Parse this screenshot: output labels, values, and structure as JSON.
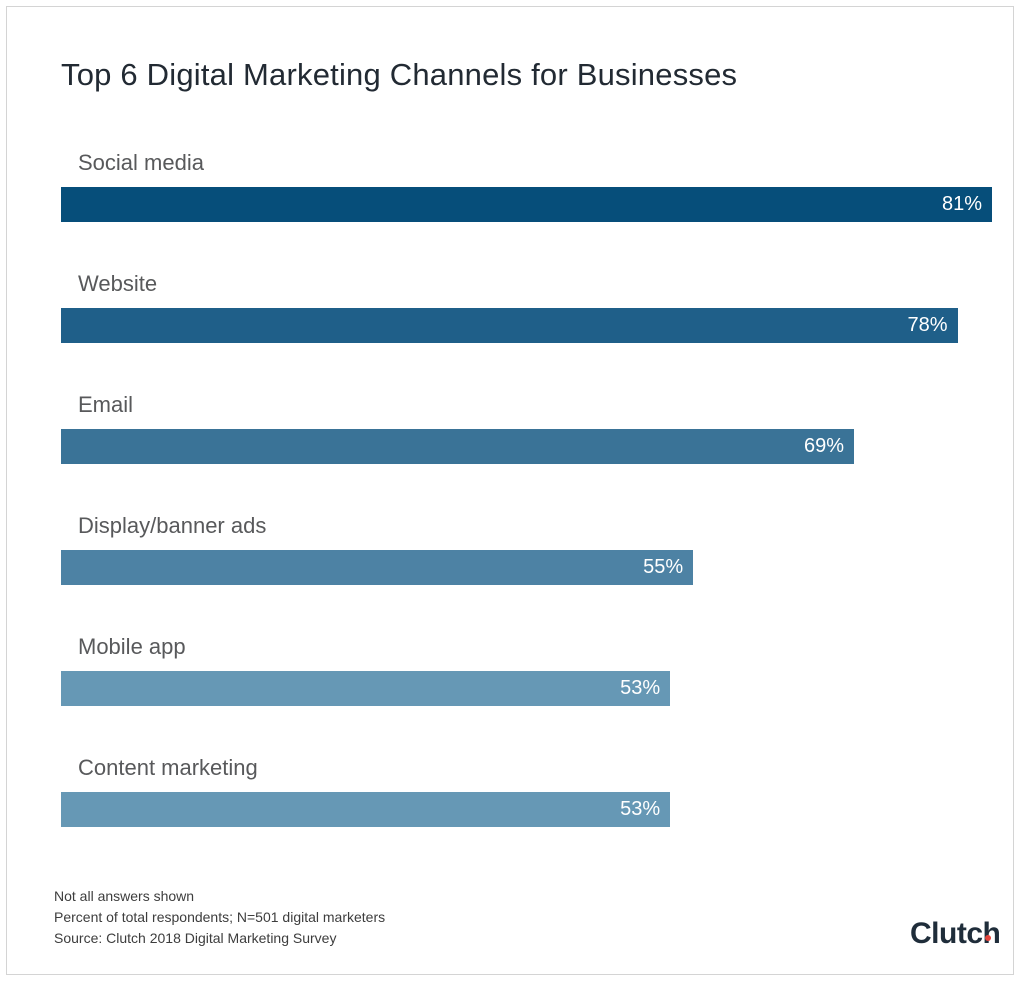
{
  "chart_data": {
    "type": "bar",
    "orientation": "horizontal",
    "title": "Top 6 Digital Marketing Channels for Businesses",
    "categories": [
      "Social media",
      "Website",
      "Email",
      "Display/banner ads",
      "Mobile app",
      "Content marketing"
    ],
    "values": [
      81,
      78,
      69,
      55,
      53,
      53
    ],
    "value_labels": [
      "81%",
      "78%",
      "69%",
      "55%",
      "53%",
      "53%"
    ],
    "value_unit": "%",
    "xlim": [
      0,
      81
    ],
    "grid": false,
    "legend": "none",
    "bar_colors": [
      "#064e7a",
      "#1f5f89",
      "#3a7397",
      "#4d82a4",
      "#6698b5",
      "#6698b5"
    ]
  },
  "notes": [
    "Not all answers shown",
    "Percent of total respondents; N=501 digital marketers",
    "Source: Clutch 2018 Digital Marketing Survey"
  ],
  "logo": {
    "text": "Clutch",
    "accent_color": "#e4433a"
  },
  "colors": {
    "title": "#222a33",
    "label": "#58595b",
    "background": "#ffffff"
  }
}
